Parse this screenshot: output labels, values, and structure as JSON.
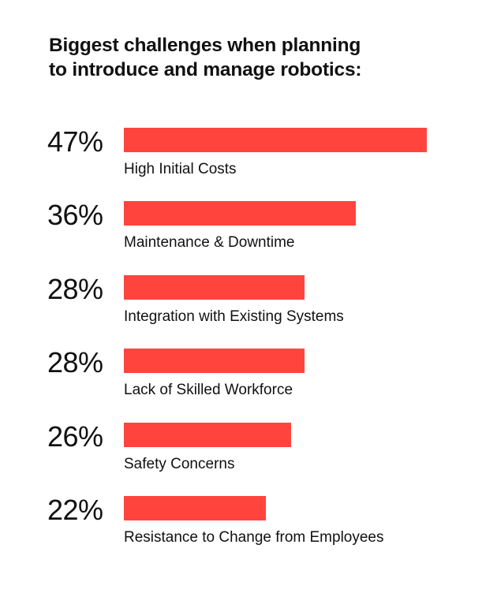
{
  "chart_data": {
    "type": "bar",
    "orientation": "horizontal",
    "title": "Biggest challenges when planning to introduce and manage robotics:",
    "title_lines": [
      "Biggest challenges when planning",
      "to introduce and manage robotics:"
    ],
    "categories": [
      "High Initial Costs",
      "Maintenance & Downtime",
      "Integration with Existing Systems",
      "Lack of Skilled Workforce",
      "Safety Concerns",
      "Resistance to Change from Employees"
    ],
    "values": [
      47,
      36,
      28,
      28,
      26,
      22
    ],
    "value_labels": [
      "47%",
      "36%",
      "28%",
      "28%",
      "26%",
      "22%"
    ],
    "unit": "%",
    "xlim": [
      0,
      47
    ],
    "grid": false,
    "legend": "none",
    "bar_color": "#ff443e"
  }
}
